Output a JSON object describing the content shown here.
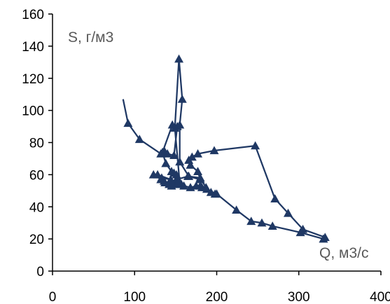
{
  "chart_data": {
    "type": "line",
    "title": "",
    "xlabel": "Q, м3/с",
    "ylabel": "S, г/м3",
    "xlim": [
      0,
      400
    ],
    "ylim": [
      0,
      160
    ],
    "xticks": [
      0,
      100,
      200,
      300,
      400
    ],
    "yticks": [
      0,
      20,
      40,
      60,
      80,
      100,
      120,
      140,
      160
    ],
    "grid": false,
    "legend": "none",
    "colors": {
      "series": "#1f3864",
      "axis": "#000000",
      "label": "#595959"
    },
    "series": [
      {
        "markers": "triangle",
        "x": [
          86,
          92,
          106,
          132,
          137,
          140,
          148,
          152,
          146,
          134,
          138,
          145,
          151,
          165,
          180,
          177,
          168,
          166,
          170,
          177,
          197,
          247,
          271,
          287,
          305,
          332,
          330,
          302,
          268,
          255,
          242,
          224,
          200,
          182,
          188,
          180,
          166,
          155,
          155,
          158,
          154,
          149,
          155,
          152,
          150,
          151,
          148,
          151,
          153,
          157,
          145,
          142,
          137,
          132,
          133,
          144,
          128,
          123,
          136,
          146,
          152,
          160,
          168,
          175,
          180,
          187,
          193,
          198
        ],
        "y": [
          107,
          92,
          82,
          73,
          74,
          73,
          72,
          90,
          91,
          74,
          67,
          62,
          57,
          59,
          57,
          62,
          66,
          69,
          71,
          73,
          75,
          78,
          45,
          36,
          26,
          21,
          20,
          24,
          28,
          30,
          31,
          38,
          48,
          52,
          51,
          58,
          59,
          68,
          91,
          107,
          132,
          89,
          55,
          58,
          56,
          54,
          61,
          60,
          55,
          54,
          53,
          54,
          55,
          57,
          58,
          57,
          60,
          60,
          56,
          54,
          54,
          53,
          52,
          53,
          53,
          52,
          49,
          48
        ]
      }
    ]
  }
}
